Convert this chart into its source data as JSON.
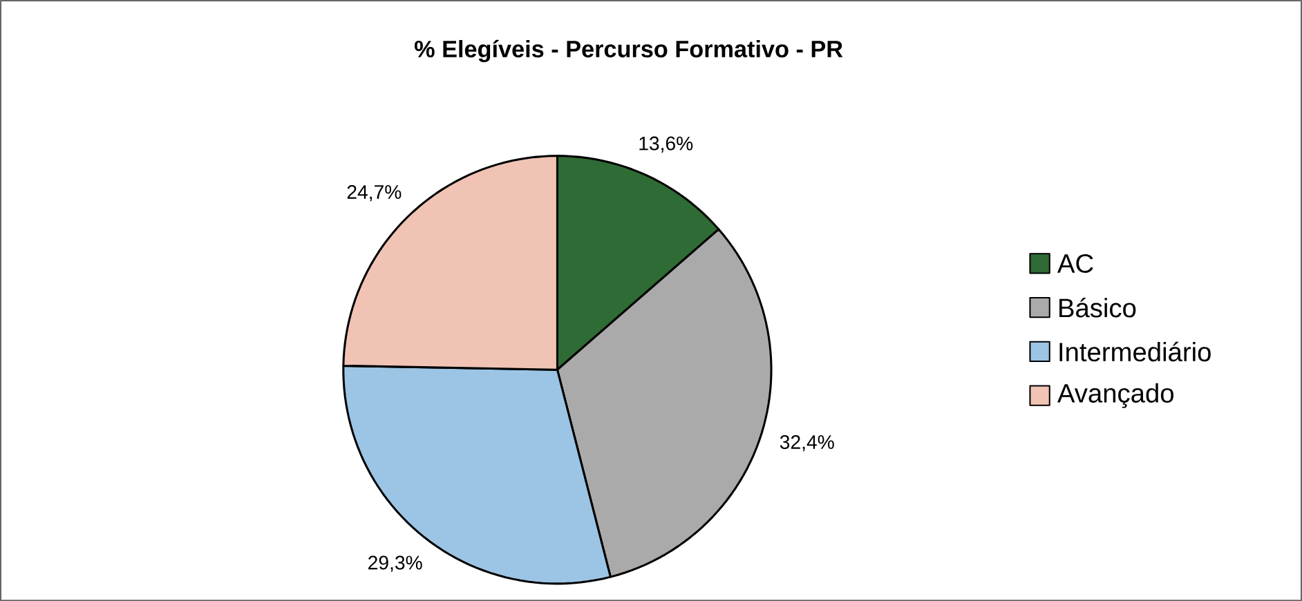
{
  "chart_data": {
    "type": "pie",
    "title": "% Elegíveis - Percurso Formativo - PR",
    "categories": [
      "AC",
      "Básico",
      "Intermediário",
      "Avançado"
    ],
    "values": [
      13.6,
      32.4,
      29.3,
      24.7
    ],
    "value_labels": [
      "13,6%",
      "32,4%",
      "29,3%",
      "24,7%"
    ],
    "colors": [
      "#2f6b34",
      "#aaaaaa",
      "#9cc4e4",
      "#f0c3b4"
    ],
    "legend": "right"
  }
}
